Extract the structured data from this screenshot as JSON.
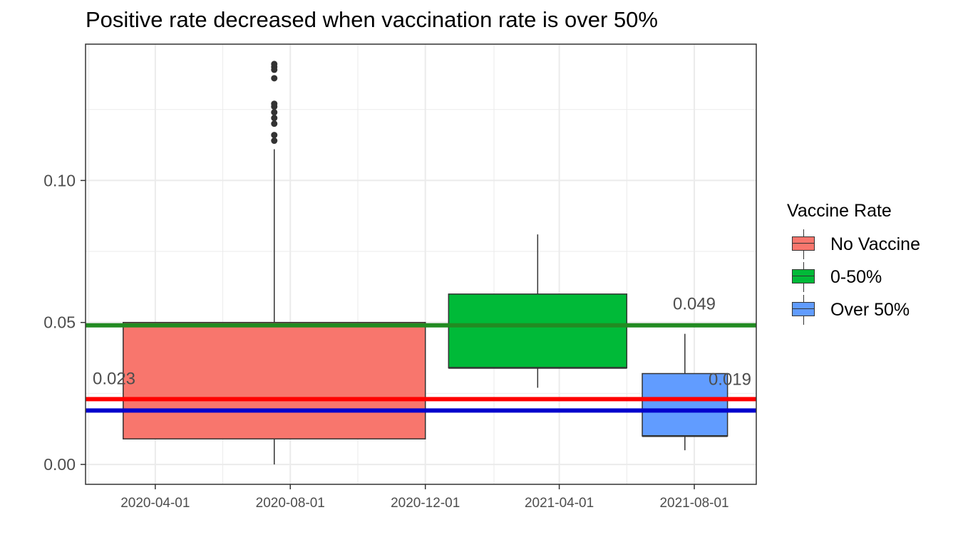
{
  "chart_data": {
    "type": "box",
    "title": "Positive rate decreased when vaccination rate is over 50%",
    "xlabel": "",
    "ylabel": "",
    "x_axis": {
      "type": "date",
      "range": [
        "2020-01-29",
        "2021-09-26"
      ],
      "ticks": [
        "2020-04-01",
        "2020-08-01",
        "2020-12-01",
        "2021-04-01",
        "2021-08-01"
      ],
      "minor_ticks": [
        "2020-02-01",
        "2020-06-01",
        "2020-10-01",
        "2021-02-01",
        "2021-06-01",
        "2021-10-01"
      ]
    },
    "y_axis": {
      "range": [
        -0.007,
        0.148
      ],
      "ticks": [
        0.0,
        0.05,
        0.1
      ],
      "tick_labels": [
        "0.00",
        "0.05",
        "0.10"
      ],
      "minor_ticks": [
        0.025,
        0.075,
        0.125
      ]
    },
    "grid": true,
    "legend": {
      "title": "Vaccine Rate",
      "position": "right",
      "entries": [
        "No Vaccine",
        "0-50%",
        "Over 50%"
      ]
    },
    "boxes": [
      {
        "group": "No Vaccine",
        "color": "#F8766D",
        "x_start": "2020-03-03",
        "x_end": "2020-12-01",
        "min": 0.0,
        "q1": 0.009,
        "median": 0.049,
        "q3": 0.05,
        "max": 0.111,
        "outliers": [
          0.114,
          0.116,
          0.12,
          0.122,
          0.124,
          0.126,
          0.127,
          0.136,
          0.139,
          0.14,
          0.141
        ]
      },
      {
        "group": "0-50%",
        "color": "#00BA38",
        "x_start": "2020-12-22",
        "x_end": "2021-06-01",
        "min": 0.027,
        "q1": 0.034,
        "median": 0.034,
        "q3": 0.06,
        "max": 0.081,
        "outliers": []
      },
      {
        "group": "Over 50%",
        "color": "#619CFF",
        "x_start": "2021-06-15",
        "x_end": "2021-08-31",
        "min": 0.005,
        "q1": 0.01,
        "median": 0.01,
        "q3": 0.032,
        "max": 0.046,
        "outliers": []
      }
    ],
    "hlines": [
      {
        "value": 0.023,
        "color": "#FF0000",
        "label": "0.023",
        "label_color": "#F8766D"
      },
      {
        "value": 0.049,
        "color": "#228B22",
        "label": "0.049",
        "label_color": "#228B22"
      },
      {
        "value": 0.019,
        "color": "#0000CD",
        "label": "0.019",
        "label_color": "#0000CD"
      }
    ]
  }
}
